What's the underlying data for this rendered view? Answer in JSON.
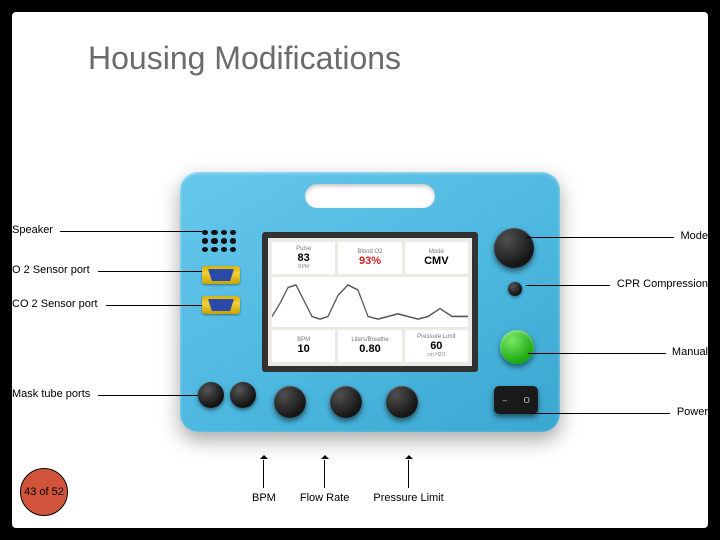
{
  "title": "Housing Modifications",
  "page": {
    "current": 43,
    "total": 52,
    "label": "43 of 52",
    "badge_color": "#d1533b"
  },
  "callouts": {
    "left": [
      {
        "id": "speaker",
        "label": "Speaker"
      },
      {
        "id": "o2",
        "label": "O 2 Sensor port"
      },
      {
        "id": "co2",
        "label": "CO 2 Sensor port"
      },
      {
        "id": "mask",
        "label": "Mask tube ports"
      }
    ],
    "right": [
      {
        "id": "mode",
        "label": "Mode"
      },
      {
        "id": "cpr",
        "label": "CPR Compression"
      },
      {
        "id": "manual",
        "label": "Manual"
      },
      {
        "id": "power",
        "label": "Power"
      }
    ],
    "bottom": [
      {
        "id": "bpm",
        "label": "BPM"
      },
      {
        "id": "flow",
        "label": "Flow Rate"
      },
      {
        "id": "press",
        "label": "Pressure Limit"
      }
    ]
  },
  "device": {
    "housing_color": "#4db8e0",
    "screen": {
      "bg": "#eceae5",
      "frame": "#323232",
      "top_row": [
        {
          "label": "Pulse",
          "value": "83",
          "unit": "BPM",
          "color": "#000000"
        },
        {
          "label": "Blood O2",
          "value": "93%",
          "unit": "",
          "color": "#c22222"
        },
        {
          "label": "Mode",
          "value": "CMV",
          "unit": "",
          "color": "#000000"
        }
      ],
      "bottom_row": [
        {
          "label": "BPM",
          "value": "10",
          "unit": "",
          "color": "#000000"
        },
        {
          "label": "Liters/Breathe",
          "value": "0.80",
          "unit": "",
          "color": "#000000"
        },
        {
          "label": "Pressure Limit",
          "value": "60",
          "unit": "cm H2O",
          "color": "#000000"
        }
      ],
      "waveform": {
        "stroke": "#555555",
        "points": [
          [
            0,
            30
          ],
          [
            8,
            20
          ],
          [
            16,
            8
          ],
          [
            24,
            6
          ],
          [
            32,
            18
          ],
          [
            40,
            30
          ],
          [
            48,
            32
          ],
          [
            56,
            30
          ],
          [
            66,
            14
          ],
          [
            76,
            6
          ],
          [
            86,
            10
          ],
          [
            96,
            30
          ],
          [
            106,
            32
          ],
          [
            116,
            30
          ],
          [
            126,
            28
          ],
          [
            136,
            30
          ],
          [
            146,
            32
          ],
          [
            156,
            30
          ],
          [
            168,
            24
          ],
          [
            180,
            30
          ],
          [
            196,
            30
          ]
        ]
      }
    },
    "power_switch": {
      "on": "–",
      "off": "O"
    },
    "manual_btn_color": "#1aa810"
  }
}
